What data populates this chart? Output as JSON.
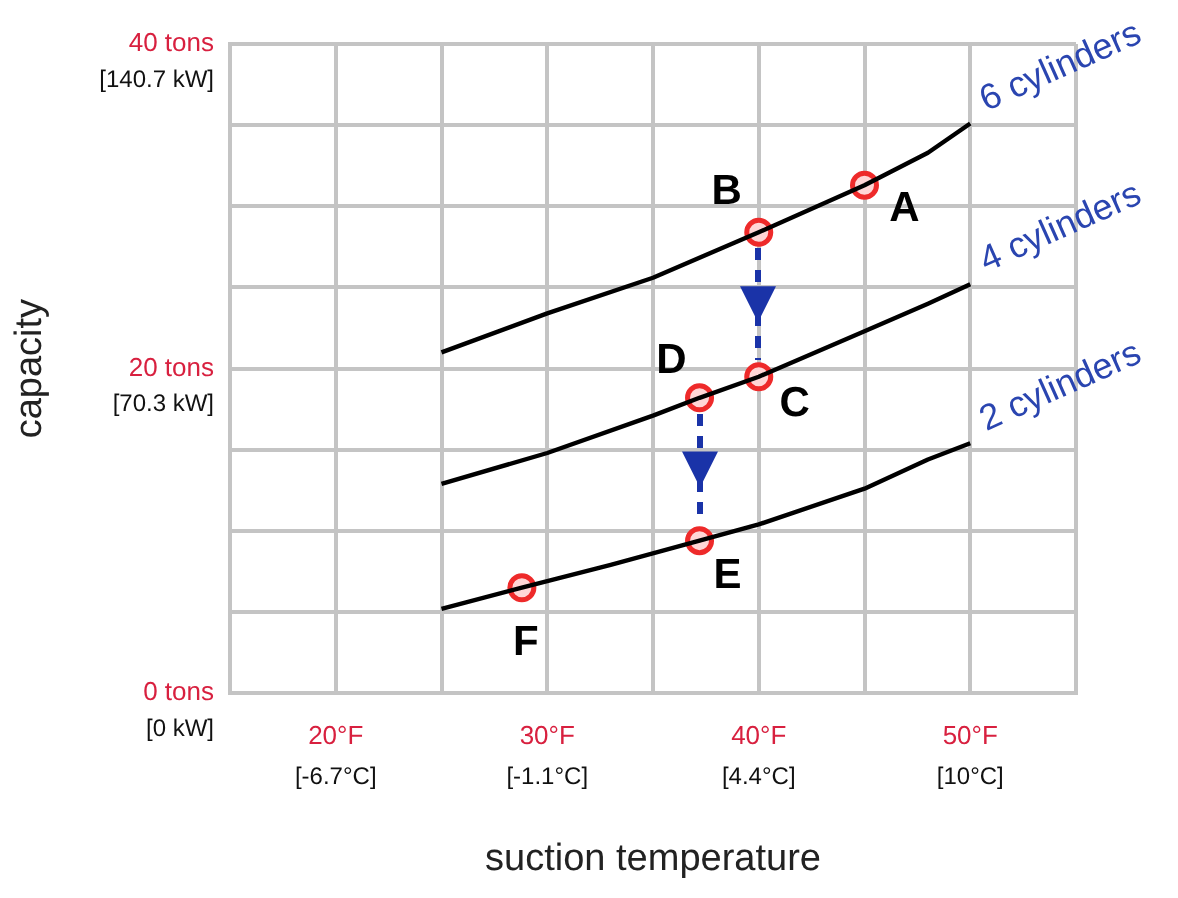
{
  "chart_data": {
    "type": "line",
    "xlabel": "suction temperature",
    "ylabel": "capacity",
    "xlim": [
      15,
      55
    ],
    "ylim": [
      0,
      40
    ],
    "xticks": [
      {
        "value": 15,
        "label": null
      },
      {
        "value": 20,
        "label": "20°F"
      },
      {
        "value": 25,
        "label": null
      },
      {
        "value": 30,
        "label": "30°F"
      },
      {
        "value": 35,
        "label": null
      },
      {
        "value": 40,
        "label": "40°F"
      },
      {
        "value": 45,
        "label": null
      },
      {
        "value": 50,
        "label": "50°F"
      },
      {
        "value": 55,
        "label": null
      }
    ],
    "yticks": [
      {
        "value": 0,
        "label": "0 tons"
      },
      {
        "value": 5,
        "label": null
      },
      {
        "value": 10,
        "label": null
      },
      {
        "value": 15,
        "label": null
      },
      {
        "value": 20,
        "label": "20 tons"
      },
      {
        "value": 25,
        "label": null
      },
      {
        "value": 30,
        "label": null
      },
      {
        "value": 35,
        "label": null
      },
      {
        "value": 40,
        "label": "40 tons"
      }
    ],
    "grid": true,
    "legend": false,
    "line_style": "solid",
    "series": [
      {
        "name": "6 cylinders",
        "color": "#000000",
        "x": [
          25,
          30,
          35,
          40,
          45,
          48,
          50
        ],
        "values": [
          21.0,
          23.4,
          25.6,
          28.4,
          31.3,
          33.3,
          35.1
        ]
      },
      {
        "name": "4 cylinders",
        "color": "#000000",
        "x": [
          25,
          30,
          35,
          37.2,
          40,
          45,
          48,
          50
        ],
        "values": [
          12.9,
          14.8,
          17.1,
          18.2,
          19.5,
          22.3,
          24.0,
          25.2
        ]
      },
      {
        "name": "2 cylinders",
        "color": "#000000",
        "x": [
          25,
          28.8,
          33,
          37.2,
          40,
          45,
          48,
          50
        ],
        "values": [
          5.2,
          6.5,
          7.9,
          9.4,
          10.4,
          12.6,
          14.4,
          15.4
        ]
      },
      {
        "type": "scatter",
        "marker": "circle",
        "color": "#ee2a2a",
        "x": [
          45,
          40,
          40,
          37.2,
          37.2,
          28.8
        ],
        "values": [
          31.3,
          28.4,
          19.5,
          18.2,
          9.4,
          6.5
        ]
      }
    ],
    "annotations": [
      "[-6.7°C]",
      "[-1.1°C]",
      "[4.4°C]",
      "[10°C]",
      "[0 kW]",
      "[70.3 kW]",
      "[140.7 kW]",
      {
        "text": "A",
        "x": 45,
        "y": 31.3
      },
      {
        "text": "B",
        "x": 40,
        "y": 28.4
      },
      {
        "text": "C",
        "x": 40,
        "y": 19.5
      },
      {
        "text": "D",
        "x": 37.2,
        "y": 18.2
      },
      {
        "text": "E",
        "x": 37.2,
        "y": 9.4
      },
      {
        "text": "F",
        "x": 28.8,
        "y": 6.5
      }
    ]
  }
}
